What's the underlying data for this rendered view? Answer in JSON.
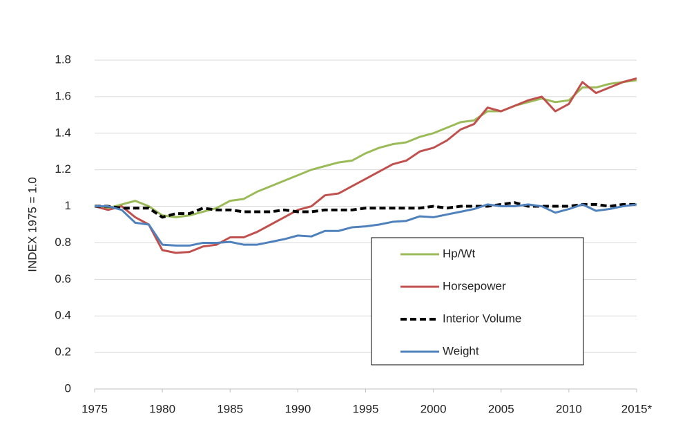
{
  "chart_data": {
    "type": "line",
    "ylabel": "INDEX 1975 = 1.0",
    "x": [
      1975,
      1976,
      1977,
      1978,
      1979,
      1980,
      1981,
      1982,
      1983,
      1984,
      1985,
      1986,
      1987,
      1988,
      1989,
      1990,
      1991,
      1992,
      1993,
      1994,
      1995,
      1996,
      1997,
      1998,
      1999,
      2000,
      2001,
      2002,
      2003,
      2004,
      2005,
      2006,
      2007,
      2008,
      2009,
      2010,
      2011,
      2012,
      2013,
      2014,
      2015
    ],
    "series": [
      {
        "name": "Hp/Wt",
        "color": "#9bbb59",
        "linestyle": "solid",
        "values": [
          1.0,
          0.99,
          1.01,
          1.03,
          1.0,
          0.95,
          0.94,
          0.95,
          0.97,
          0.99,
          1.03,
          1.04,
          1.08,
          1.11,
          1.14,
          1.17,
          1.2,
          1.22,
          1.24,
          1.25,
          1.29,
          1.32,
          1.34,
          1.35,
          1.38,
          1.4,
          1.43,
          1.46,
          1.47,
          1.52,
          1.52,
          1.55,
          1.57,
          1.59,
          1.57,
          1.58,
          1.65,
          1.65,
          1.67,
          1.68,
          1.69
        ]
      },
      {
        "name": "Horsepower",
        "color": "#c0504d",
        "linestyle": "solid",
        "values": [
          1.0,
          0.98,
          1.0,
          0.94,
          0.9,
          0.76,
          0.745,
          0.75,
          0.78,
          0.79,
          0.83,
          0.83,
          0.86,
          0.9,
          0.94,
          0.98,
          1.0,
          1.06,
          1.07,
          1.11,
          1.15,
          1.19,
          1.23,
          1.25,
          1.3,
          1.32,
          1.36,
          1.42,
          1.45,
          1.54,
          1.52,
          1.55,
          1.58,
          1.6,
          1.52,
          1.56,
          1.68,
          1.62,
          1.65,
          1.68,
          1.7
        ]
      },
      {
        "name": "Interior Volume",
        "color": "#000000",
        "linestyle": "dashed",
        "values": [
          1.0,
          1.0,
          0.99,
          0.99,
          0.99,
          0.94,
          0.96,
          0.96,
          0.99,
          0.98,
          0.98,
          0.97,
          0.97,
          0.97,
          0.98,
          0.97,
          0.97,
          0.98,
          0.98,
          0.98,
          0.99,
          0.99,
          0.99,
          0.99,
          0.99,
          1.0,
          0.99,
          1.0,
          1.0,
          1.0,
          1.01,
          1.02,
          1.0,
          1.0,
          1.0,
          1.0,
          1.01,
          1.01,
          1.0,
          1.01,
          1.01
        ]
      },
      {
        "name": "Weight",
        "color": "#4f81bd",
        "linestyle": "solid",
        "values": [
          1.0,
          1.0,
          0.98,
          0.91,
          0.9,
          0.79,
          0.785,
          0.785,
          0.8,
          0.8,
          0.805,
          0.79,
          0.79,
          0.805,
          0.82,
          0.84,
          0.835,
          0.865,
          0.865,
          0.885,
          0.89,
          0.9,
          0.915,
          0.92,
          0.945,
          0.94,
          0.955,
          0.97,
          0.985,
          1.01,
          1.0,
          1.0,
          1.01,
          1.0,
          0.965,
          0.985,
          1.01,
          0.975,
          0.985,
          1.0,
          1.01
        ]
      }
    ],
    "xlim": [
      1975,
      2015
    ],
    "xticks": [
      1975,
      1980,
      1985,
      1990,
      1995,
      2000,
      2005,
      2010,
      {
        "value": 2015,
        "label": "2015*"
      }
    ],
    "ylim": [
      0,
      1.8
    ],
    "yticks": [
      0,
      0.2,
      0.4,
      0.6,
      0.8,
      1,
      1.2,
      1.4,
      1.6,
      1.8
    ],
    "grid": true,
    "legend": "lower-right"
  }
}
